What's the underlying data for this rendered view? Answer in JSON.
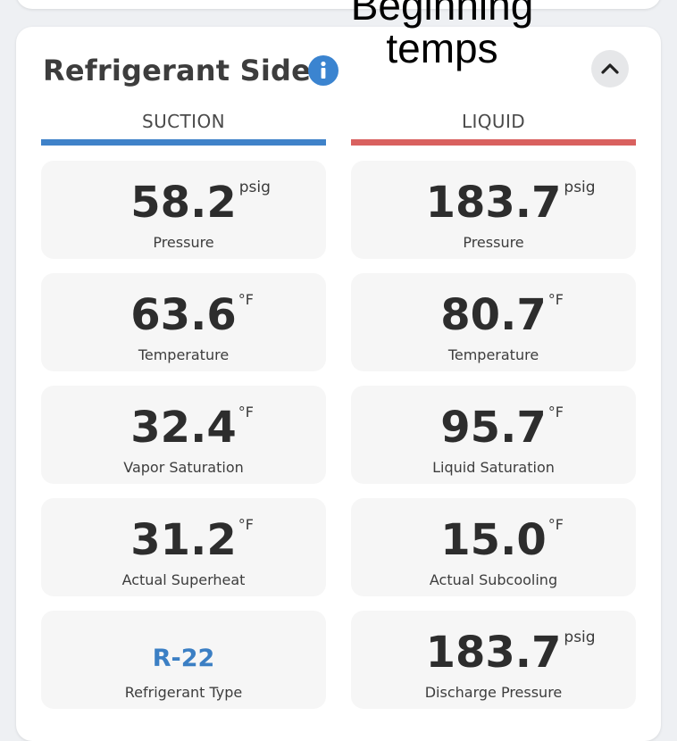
{
  "panel": {
    "title": "Refrigerant Side",
    "annotation": "Beginning temps",
    "colors": {
      "suction": "#3f82c9",
      "liquid": "#d9615f",
      "info": "#3b84d0",
      "refrigerant_type": "#3b7fc4"
    }
  },
  "suction": {
    "header": "SUCTION",
    "pressure": {
      "value": "58.2",
      "unit": "psig",
      "label": "Pressure"
    },
    "temperature": {
      "value": "63.6",
      "unit": "°F",
      "label": "Temperature"
    },
    "saturation": {
      "value": "32.4",
      "unit": "°F",
      "label": "Vapor Saturation"
    },
    "superheat": {
      "value": "31.2",
      "unit": "°F",
      "label": "Actual Superheat"
    },
    "refrigerant": {
      "value": "R-22",
      "label": "Refrigerant Type"
    }
  },
  "liquid": {
    "header": "LIQUID",
    "pressure": {
      "value": "183.7",
      "unit": "psig",
      "label": "Pressure"
    },
    "temperature": {
      "value": "80.7",
      "unit": "°F",
      "label": "Temperature"
    },
    "saturation": {
      "value": "95.7",
      "unit": "°F",
      "label": "Liquid Saturation"
    },
    "subcooling": {
      "value": "15.0",
      "unit": "°F",
      "label": "Actual Subcooling"
    },
    "discharge": {
      "value": "183.7",
      "unit": "psig",
      "label": "Discharge Pressure"
    }
  },
  "icons": {
    "info": "info-icon",
    "collapse": "chevron-up-icon"
  }
}
